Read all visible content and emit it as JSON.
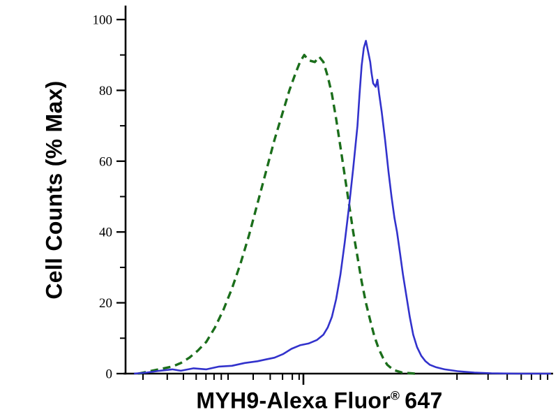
{
  "figure": {
    "background_color": "#ffffff",
    "axis_color": "#000000"
  },
  "chart_data": {
    "type": "line",
    "chart_kind": "flow cytometry histogram overlay",
    "title": "",
    "xlabel": "MYH9-Alexa Fluor® 647",
    "xlabel_parts": {
      "main": "MYH9-Alexa Fluor",
      "sup": "®",
      "suffix": "647"
    },
    "ylabel": "Cell Counts (% Max)",
    "xlim": [
      0,
      1
    ],
    "ylim": [
      0,
      100
    ],
    "x_scale": "log-style fluorescence intensity axis, no numeric tick labels",
    "grid": false,
    "legend": "none",
    "y_ticks": {
      "major": [
        0,
        20,
        40,
        60,
        80,
        100
      ],
      "minor": [
        10,
        30,
        50,
        70,
        90
      ]
    },
    "x_ticks": {
      "major": [
        0.418
      ],
      "minor": [
        0.041,
        0.098,
        0.136,
        0.166,
        0.189,
        0.208,
        0.225,
        0.241,
        0.3,
        0.34,
        0.369,
        0.392,
        0.408,
        0.779,
        0.852,
        0.897,
        0.93,
        0.954,
        0.975,
        0.992
      ]
    },
    "series": [
      {
        "name": "green dashed curve (control)",
        "color": "#1b6e1b",
        "line_style": "dashed",
        "line_width": 3.4,
        "points": [
          [
            0.03,
            0
          ],
          [
            0.05,
            0.5
          ],
          [
            0.07,
            1
          ],
          [
            0.09,
            1.5
          ],
          [
            0.11,
            2
          ],
          [
            0.13,
            3
          ],
          [
            0.15,
            4.5
          ],
          [
            0.17,
            6.5
          ],
          [
            0.19,
            9
          ],
          [
            0.21,
            13
          ],
          [
            0.23,
            18
          ],
          [
            0.25,
            24
          ],
          [
            0.27,
            31
          ],
          [
            0.29,
            39
          ],
          [
            0.31,
            48
          ],
          [
            0.33,
            57
          ],
          [
            0.35,
            66
          ],
          [
            0.37,
            74
          ],
          [
            0.385,
            80
          ],
          [
            0.4,
            85
          ],
          [
            0.41,
            88
          ],
          [
            0.42,
            90
          ],
          [
            0.43,
            88.5
          ],
          [
            0.445,
            88
          ],
          [
            0.455,
            89.5
          ],
          [
            0.465,
            88
          ],
          [
            0.475,
            84
          ],
          [
            0.485,
            79
          ],
          [
            0.495,
            72
          ],
          [
            0.505,
            64
          ],
          [
            0.515,
            56
          ],
          [
            0.525,
            48
          ],
          [
            0.535,
            40
          ],
          [
            0.545,
            33
          ],
          [
            0.555,
            26
          ],
          [
            0.565,
            20
          ],
          [
            0.575,
            15
          ],
          [
            0.585,
            10.5
          ],
          [
            0.595,
            7
          ],
          [
            0.605,
            4.5
          ],
          [
            0.615,
            2.5
          ],
          [
            0.63,
            1
          ],
          [
            0.65,
            0.3
          ],
          [
            0.68,
            0
          ]
        ]
      },
      {
        "name": "blue solid curve (MYH9 stained)",
        "color": "#3232cc",
        "line_style": "solid",
        "line_width": 2.6,
        "points": [
          [
            0.02,
            0
          ],
          [
            0.05,
            0.3
          ],
          [
            0.08,
            0.8
          ],
          [
            0.11,
            1.2
          ],
          [
            0.13,
            0.8
          ],
          [
            0.16,
            1.5
          ],
          [
            0.19,
            1.2
          ],
          [
            0.22,
            2
          ],
          [
            0.25,
            2.2
          ],
          [
            0.28,
            3
          ],
          [
            0.31,
            3.5
          ],
          [
            0.33,
            4
          ],
          [
            0.35,
            4.5
          ],
          [
            0.37,
            5.5
          ],
          [
            0.39,
            7
          ],
          [
            0.41,
            8
          ],
          [
            0.43,
            8.5
          ],
          [
            0.45,
            9.5
          ],
          [
            0.465,
            11
          ],
          [
            0.475,
            13
          ],
          [
            0.485,
            16
          ],
          [
            0.495,
            21
          ],
          [
            0.505,
            28
          ],
          [
            0.515,
            37
          ],
          [
            0.525,
            47
          ],
          [
            0.535,
            58
          ],
          [
            0.545,
            70
          ],
          [
            0.55,
            79
          ],
          [
            0.555,
            87
          ],
          [
            0.56,
            92
          ],
          [
            0.565,
            94
          ],
          [
            0.57,
            91
          ],
          [
            0.575,
            88
          ],
          [
            0.578,
            85
          ],
          [
            0.582,
            82
          ],
          [
            0.588,
            81
          ],
          [
            0.592,
            83
          ],
          [
            0.596,
            79
          ],
          [
            0.602,
            74
          ],
          [
            0.61,
            66
          ],
          [
            0.618,
            57
          ],
          [
            0.625,
            50
          ],
          [
            0.632,
            44
          ],
          [
            0.638,
            40
          ],
          [
            0.645,
            34
          ],
          [
            0.652,
            28
          ],
          [
            0.66,
            22
          ],
          [
            0.668,
            16
          ],
          [
            0.676,
            11
          ],
          [
            0.685,
            7.5
          ],
          [
            0.695,
            5
          ],
          [
            0.705,
            3.5
          ],
          [
            0.715,
            2.5
          ],
          [
            0.73,
            1.8
          ],
          [
            0.75,
            1.2
          ],
          [
            0.78,
            0.7
          ],
          [
            0.82,
            0.3
          ],
          [
            0.86,
            0.1
          ],
          [
            0.92,
            0
          ],
          [
            1.0,
            0
          ]
        ]
      }
    ]
  }
}
